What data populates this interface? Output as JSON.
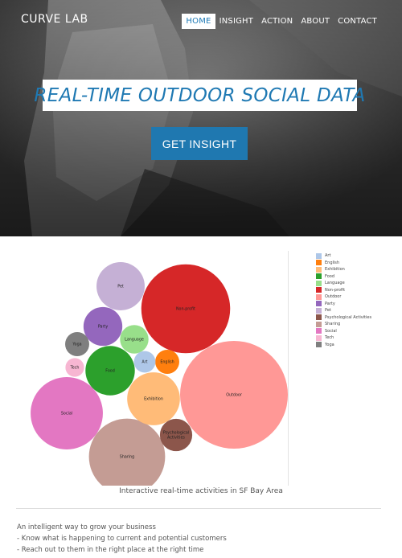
{
  "brand": "CURVE LAB",
  "nav": [
    {
      "label": "HOME",
      "active": true
    },
    {
      "label": "INSIGHT",
      "active": false
    },
    {
      "label": "ACTION",
      "active": false
    },
    {
      "label": "ABOUT",
      "active": false
    },
    {
      "label": "CONTACT",
      "active": false
    }
  ],
  "hero": {
    "headline": "REAL-TIME OUTDOOR SOCIAL DATA",
    "cta": "GET INSIGHT"
  },
  "chart_data": {
    "type": "bubble",
    "caption": "Interactive real-time activities in SF Bay Area",
    "legend": [
      {
        "name": "Art",
        "color": "#aec7e8"
      },
      {
        "name": "English",
        "color": "#ff7f0e"
      },
      {
        "name": "Exhibition",
        "color": "#ffbb78"
      },
      {
        "name": "Food",
        "color": "#2ca02c"
      },
      {
        "name": "Language",
        "color": "#98df8a"
      },
      {
        "name": "Non-profit",
        "color": "#d62728"
      },
      {
        "name": "Outdoor",
        "color": "#ff9896"
      },
      {
        "name": "Party",
        "color": "#9467bd"
      },
      {
        "name": "Pet",
        "color": "#c5b0d5"
      },
      {
        "name": "Psychological Activities",
        "color": "#8c564b"
      },
      {
        "name": "Sharing",
        "color": "#c49c94"
      },
      {
        "name": "Social",
        "color": "#e377c2"
      },
      {
        "name": "Tech",
        "color": "#f7b6d2"
      },
      {
        "name": "Yoga",
        "color": "#7f7f7f"
      }
    ],
    "bubbles": [
      {
        "name": "Outdoor",
        "value": 100
      },
      {
        "name": "Non-profit",
        "value": 68
      },
      {
        "name": "Social",
        "value": 45
      },
      {
        "name": "Sharing",
        "value": 50
      },
      {
        "name": "Exhibition",
        "value": 24
      },
      {
        "name": "Pet",
        "value": 20
      },
      {
        "name": "Food",
        "value": 21
      },
      {
        "name": "Party",
        "value": 13
      },
      {
        "name": "Psychological Activities",
        "value": 9
      },
      {
        "name": "Language",
        "value": 7
      },
      {
        "name": "English",
        "value": 5
      },
      {
        "name": "Art",
        "value": 4
      },
      {
        "name": "Yoga",
        "value": 5
      },
      {
        "name": "Tech",
        "value": 3
      }
    ]
  },
  "intro": {
    "title": "An intelligent way to grow your business",
    "bullets": [
      "- Know what is happening to current and potential customers",
      "- Reach out to them in the right place at the right time"
    ]
  }
}
